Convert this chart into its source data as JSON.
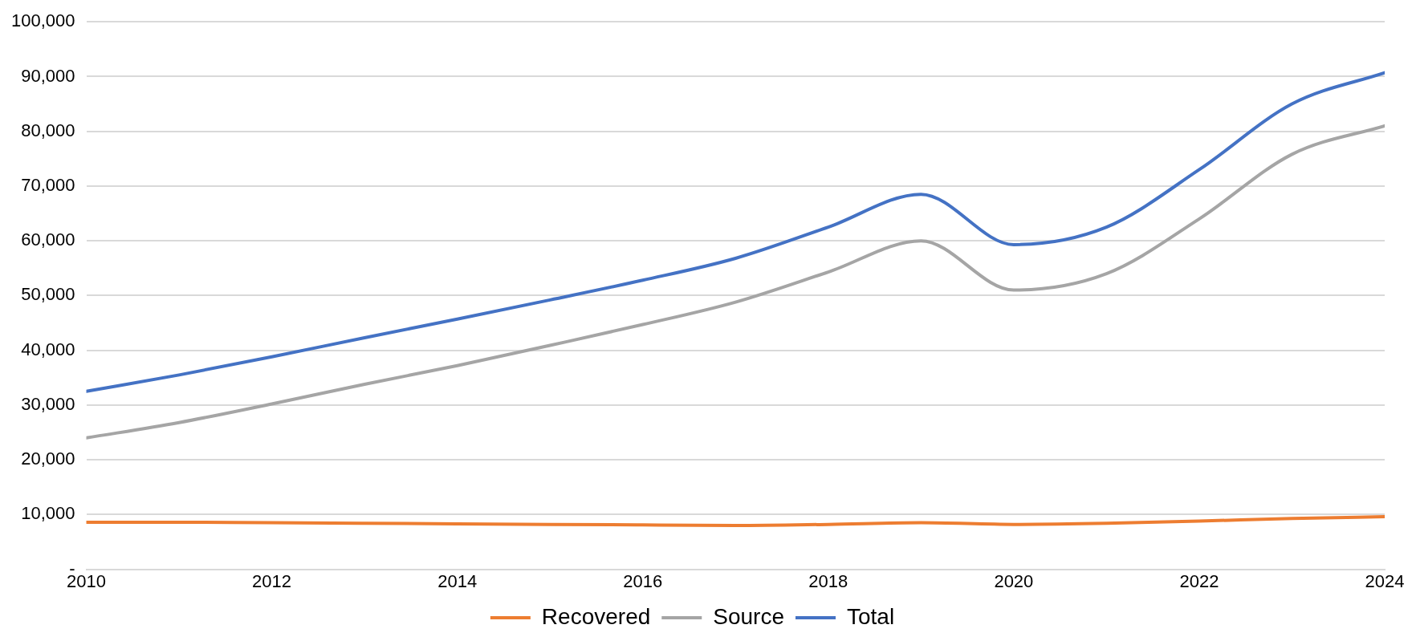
{
  "chart_data": {
    "type": "line",
    "x": [
      2010,
      2011,
      2012,
      2013,
      2014,
      2015,
      2016,
      2017,
      2018,
      2019,
      2020,
      2021,
      2022,
      2023,
      2024
    ],
    "series": [
      {
        "name": "Recovered",
        "color": "#ed7d31",
        "values": [
          8600,
          8600,
          8500,
          8400,
          8300,
          8200,
          8100,
          8000,
          8200,
          8500,
          8200,
          8400,
          8800,
          9300,
          9600
        ]
      },
      {
        "name": "Source",
        "color": "#a5a5a5",
        "values": [
          24000,
          26800,
          30200,
          33800,
          37200,
          40900,
          44700,
          48800,
          54300,
          60000,
          51000,
          54000,
          64000,
          75800,
          81000
        ]
      },
      {
        "name": "Total",
        "color": "#4472c4",
        "values": [
          32500,
          35500,
          38800,
          42300,
          45700,
          49200,
          52800,
          56800,
          62500,
          68500,
          59300,
          62500,
          73000,
          85000,
          90700
        ]
      }
    ],
    "xlim": [
      2010,
      2024
    ],
    "xticks": [
      2010,
      2012,
      2014,
      2016,
      2018,
      2020,
      2022,
      2024
    ],
    "ylim": [
      0,
      100000
    ],
    "yticks": [
      {
        "value": 0,
        "label": "-"
      },
      {
        "value": 10000,
        "label": "10,000"
      },
      {
        "value": 20000,
        "label": "20,000"
      },
      {
        "value": 30000,
        "label": "30,000"
      },
      {
        "value": 40000,
        "label": "40,000"
      },
      {
        "value": 50000,
        "label": "50,000"
      },
      {
        "value": 60000,
        "label": "60,000"
      },
      {
        "value": 70000,
        "label": "70,000"
      },
      {
        "value": 80000,
        "label": "80,000"
      },
      {
        "value": 90000,
        "label": "90,000"
      },
      {
        "value": 100000,
        "label": "100,000"
      }
    ],
    "grid": "y",
    "legend": "bottom",
    "marker": "none",
    "line_style": "solid"
  }
}
